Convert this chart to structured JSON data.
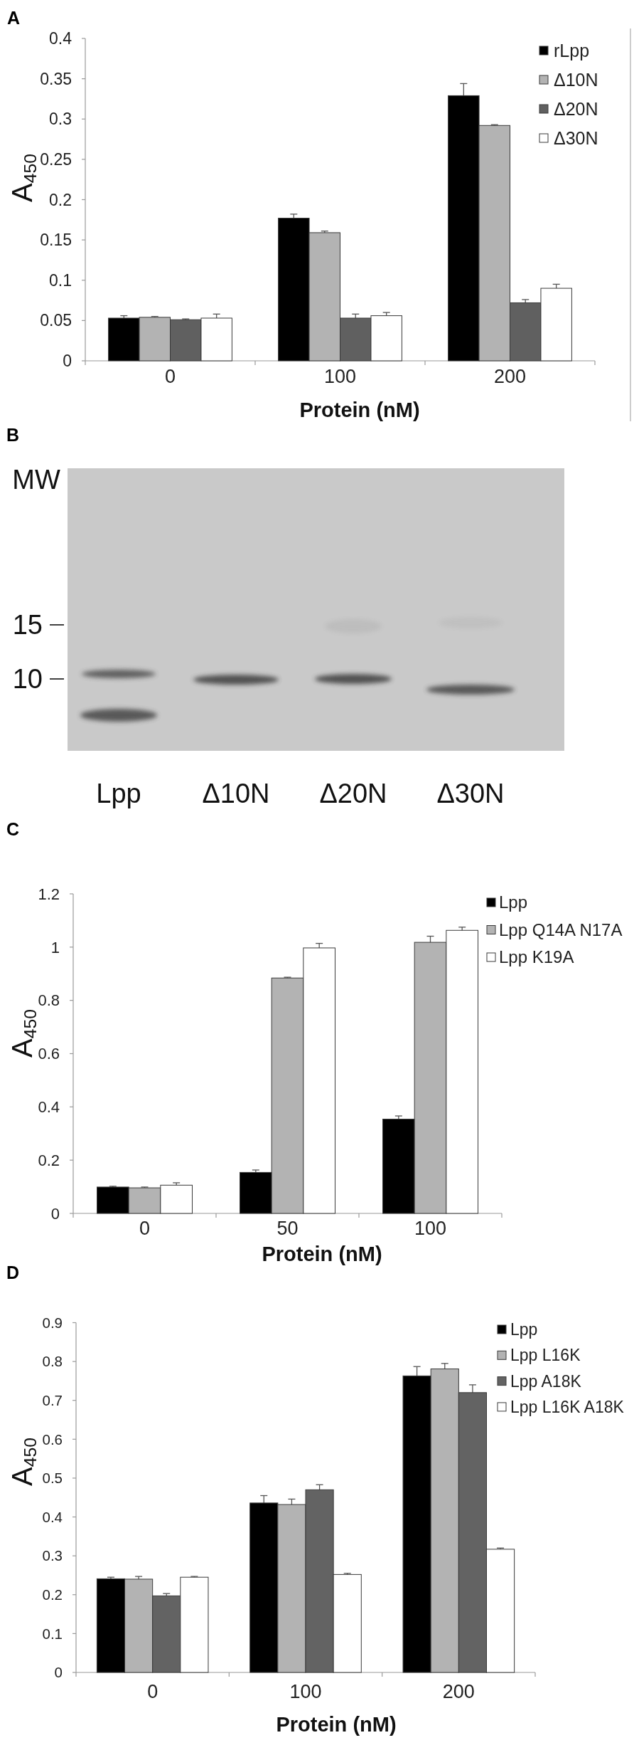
{
  "chart_data": [
    {
      "type": "bar",
      "title": "A",
      "xlabel": "Protein (nM)",
      "ylabel": "A$_{450}$",
      "categories": [
        "0",
        "100",
        "200"
      ],
      "series": [
        {
          "name": "rLpp",
          "color": "#000000",
          "values": [
            0.053,
            0.177,
            0.329
          ],
          "errors": [
            0.003,
            0.005,
            0.015
          ]
        },
        {
          "name": "Δ10N",
          "color": "#b3b3b3",
          "values": [
            0.054,
            0.159,
            0.292
          ],
          "errors": [
            0.001,
            0.002,
            0.001
          ]
        },
        {
          "name": "Δ20N",
          "color": "#606060",
          "values": [
            0.051,
            0.053,
            0.072
          ],
          "errors": [
            0.001,
            0.005,
            0.004
          ]
        },
        {
          "name": "Δ30N",
          "color": "#ffffff",
          "values": [
            0.053,
            0.056,
            0.09
          ],
          "errors": [
            0.005,
            0.004,
            0.005
          ]
        }
      ],
      "ylim": [
        0,
        0.4
      ],
      "yticks": [
        0,
        0.05,
        0.1,
        0.15,
        0.2,
        0.25,
        0.3,
        0.35,
        0.4
      ],
      "legend": "top right"
    },
    {
      "type": "other",
      "title": "B",
      "categories": [
        "Lpp",
        "Δ10N",
        "Δ20N",
        "Δ30N"
      ],
      "annotations": [
        "MW",
        "15",
        "10"
      ]
    },
    {
      "type": "bar",
      "title": "C",
      "xlabel": "Protein (nM)",
      "ylabel": "A$_{450}$",
      "categories": [
        "0",
        "50",
        "100"
      ],
      "series": [
        {
          "name": "Lpp",
          "color": "#000000",
          "values": [
            0.099,
            0.154,
            0.354
          ],
          "errors": [
            0.003,
            0.009,
            0.012
          ]
        },
        {
          "name": "Lpp Q14A N17A",
          "color": "#b3b3b3",
          "values": [
            0.096,
            0.884,
            1.018
          ],
          "errors": [
            0.003,
            0.003,
            0.023
          ]
        },
        {
          "name": "Lpp K19A",
          "color": "#ffffff",
          "values": [
            0.106,
            0.997,
            1.063
          ],
          "errors": [
            0.009,
            0.017,
            0.012
          ]
        }
      ],
      "ylim": [
        0,
        1.2
      ],
      "yticks": [
        0,
        0.2,
        0.4,
        0.6,
        0.8,
        1,
        1.2
      ],
      "legend": "top right"
    },
    {
      "type": "bar",
      "title": "D",
      "xlabel": "Protein (nM)",
      "ylabel": "A$_{450}$",
      "categories": [
        "0",
        "100",
        "200"
      ],
      "series": [
        {
          "name": "Lpp",
          "color": "#000000",
          "values": [
            0.241,
            0.436,
            0.763
          ],
          "errors": [
            0.004,
            0.019,
            0.024
          ]
        },
        {
          "name": "Lpp L16K",
          "color": "#b3b3b3",
          "values": [
            0.24,
            0.432,
            0.781
          ],
          "errors": [
            0.007,
            0.014,
            0.014
          ]
        },
        {
          "name": "Lpp A18K",
          "color": "#636363",
          "values": [
            0.197,
            0.47,
            0.72
          ],
          "errors": [
            0.006,
            0.013,
            0.02
          ]
        },
        {
          "name": "Lpp L16K A18K",
          "color": "#ffffff",
          "values": [
            0.245,
            0.252,
            0.317
          ],
          "errors": [
            0.002,
            0.003,
            0.003
          ]
        }
      ],
      "ylim": [
        0,
        0.9
      ],
      "yticks": [
        0,
        0.1,
        0.2,
        0.3,
        0.4,
        0.5,
        0.6,
        0.7,
        0.8,
        0.9
      ],
      "legend": "top right"
    }
  ]
}
